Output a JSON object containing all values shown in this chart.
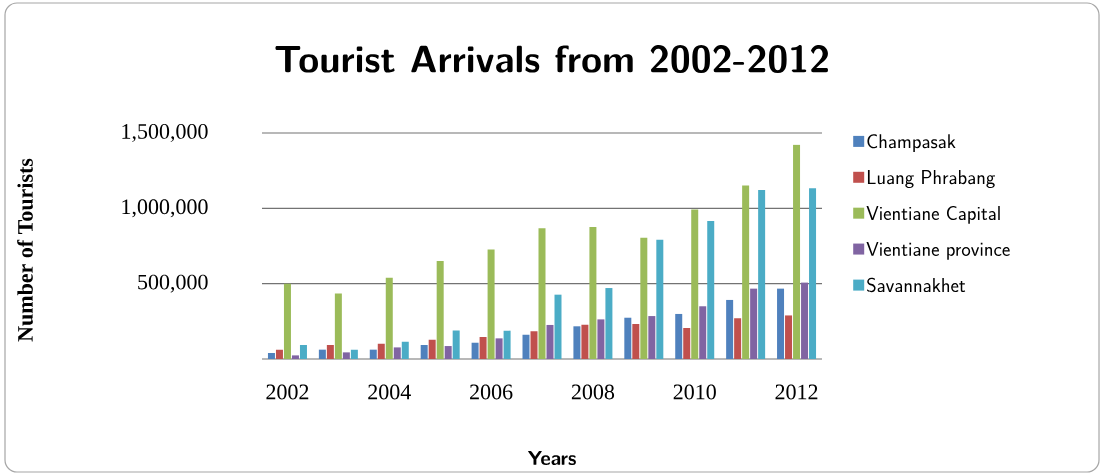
{
  "chart_data": {
    "type": "bar",
    "title": "Tourist Arrivals from 2002-2012",
    "xlabel": "Years",
    "ylabel": "Number of Tourists",
    "categories": [
      "2002",
      null,
      "2004",
      null,
      "2006",
      null,
      "2008",
      null,
      "2010",
      null,
      "2012"
    ],
    "series": [
      {
        "name": "Champasak",
        "color": "#4f81bd",
        "values": [
          40000,
          62000,
          62000,
          93000,
          108000,
          161000,
          217000,
          274000,
          299000,
          392000,
          467000
        ]
      },
      {
        "name": "Luang Phrabang",
        "color": "#c0504d",
        "values": [
          62000,
          93000,
          102000,
          128000,
          146000,
          184000,
          228000,
          232000,
          206000,
          270000,
          290000
        ]
      },
      {
        "name": "Vientiane Capital",
        "color": "#9bbb59",
        "values": [
          500000,
          434000,
          540000,
          650000,
          726000,
          867000,
          876000,
          805000,
          993000,
          1152000,
          1422000
        ]
      },
      {
        "name": "Vientiane province",
        "color": "#8064a2",
        "values": [
          24000,
          44000,
          77000,
          86000,
          137000,
          226000,
          263000,
          285000,
          350000,
          467000,
          507000
        ]
      },
      {
        "name": "Savannakhet",
        "color": "#4bacc6",
        "values": [
          93000,
          62000,
          115000,
          190000,
          188000,
          427000,
          471000,
          792000,
          916000,
          1121000,
          1133000
        ]
      }
    ],
    "ylim": [
      0,
      1500000
    ],
    "yticks": [
      {
        "value": 0,
        "label": null
      },
      {
        "value": 500000,
        "label": "500,000"
      },
      {
        "value": 1000000,
        "label": "1,000,000"
      },
      {
        "value": 1500000,
        "label": "1,500,000"
      }
    ],
    "grid": "y",
    "legend": "right"
  }
}
